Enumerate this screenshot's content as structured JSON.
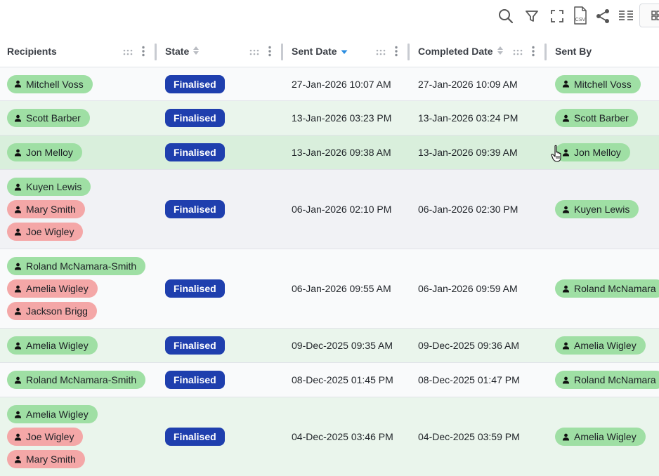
{
  "toolbar": {
    "icons": [
      "search-icon",
      "filter-icon",
      "fullscreen-icon",
      "csv-icon",
      "share-icon",
      "columns-icon",
      "grid-icon"
    ],
    "csv_label": "CSV"
  },
  "columns": {
    "recipients": "Recipients",
    "state": "State",
    "sent_date": "Sent Date",
    "completed_date": "Completed Date",
    "sent_by": "Sent By"
  },
  "sort": {
    "column": "sent_date",
    "direction": "descending"
  },
  "colors": {
    "chip_green": "#9fdfa4",
    "chip_red": "#f4a7a7",
    "badge": "#1f3fae",
    "sort_active": "#2b8de0"
  },
  "rows": [
    {
      "recipients": [
        {
          "name": "Mitchell Voss",
          "status": "green"
        }
      ],
      "state": "Finalised",
      "sent_date": "27-Jan-2026 10:07 AM",
      "completed_date": "27-Jan-2026 10:09 AM",
      "sent_by": "Mitchell Voss"
    },
    {
      "recipients": [
        {
          "name": "Scott Barber",
          "status": "green"
        }
      ],
      "state": "Finalised",
      "sent_date": "13-Jan-2026 03:23 PM",
      "completed_date": "13-Jan-2026 03:24 PM",
      "sent_by": "Scott Barber"
    },
    {
      "recipients": [
        {
          "name": "Jon Melloy",
          "status": "green"
        }
      ],
      "state": "Finalised",
      "sent_date": "13-Jan-2026 09:38 AM",
      "completed_date": "13-Jan-2026 09:39 AM",
      "sent_by": "Jon Melloy"
    },
    {
      "recipients": [
        {
          "name": "Kuyen Lewis",
          "status": "green"
        },
        {
          "name": "Mary Smith",
          "status": "red"
        },
        {
          "name": "Joe Wigley",
          "status": "red"
        }
      ],
      "state": "Finalised",
      "sent_date": "06-Jan-2026 02:10 PM",
      "completed_date": "06-Jan-2026 02:30 PM",
      "sent_by": "Kuyen Lewis"
    },
    {
      "recipients": [
        {
          "name": "Roland McNamara-Smith",
          "status": "green"
        },
        {
          "name": "Amelia Wigley",
          "status": "red"
        },
        {
          "name": "Jackson Brigg",
          "status": "red"
        }
      ],
      "state": "Finalised",
      "sent_date": "06-Jan-2026 09:55 AM",
      "completed_date": "06-Jan-2026 09:59 AM",
      "sent_by": "Roland McNamara"
    },
    {
      "recipients": [
        {
          "name": "Amelia Wigley",
          "status": "green"
        }
      ],
      "state": "Finalised",
      "sent_date": "09-Dec-2025 09:35 AM",
      "completed_date": "09-Dec-2025 09:36 AM",
      "sent_by": "Amelia Wigley"
    },
    {
      "recipients": [
        {
          "name": "Roland McNamara-Smith",
          "status": "green"
        }
      ],
      "state": "Finalised",
      "sent_date": "08-Dec-2025 01:45 PM",
      "completed_date": "08-Dec-2025 01:47 PM",
      "sent_by": "Roland McNamara"
    },
    {
      "recipients": [
        {
          "name": "Amelia Wigley",
          "status": "green"
        },
        {
          "name": "Joe Wigley",
          "status": "red"
        },
        {
          "name": "Mary Smith",
          "status": "red"
        }
      ],
      "state": "Finalised",
      "sent_date": "04-Dec-2025 03:46 PM",
      "completed_date": "04-Dec-2025 03:59 PM",
      "sent_by": "Amelia Wigley"
    }
  ]
}
